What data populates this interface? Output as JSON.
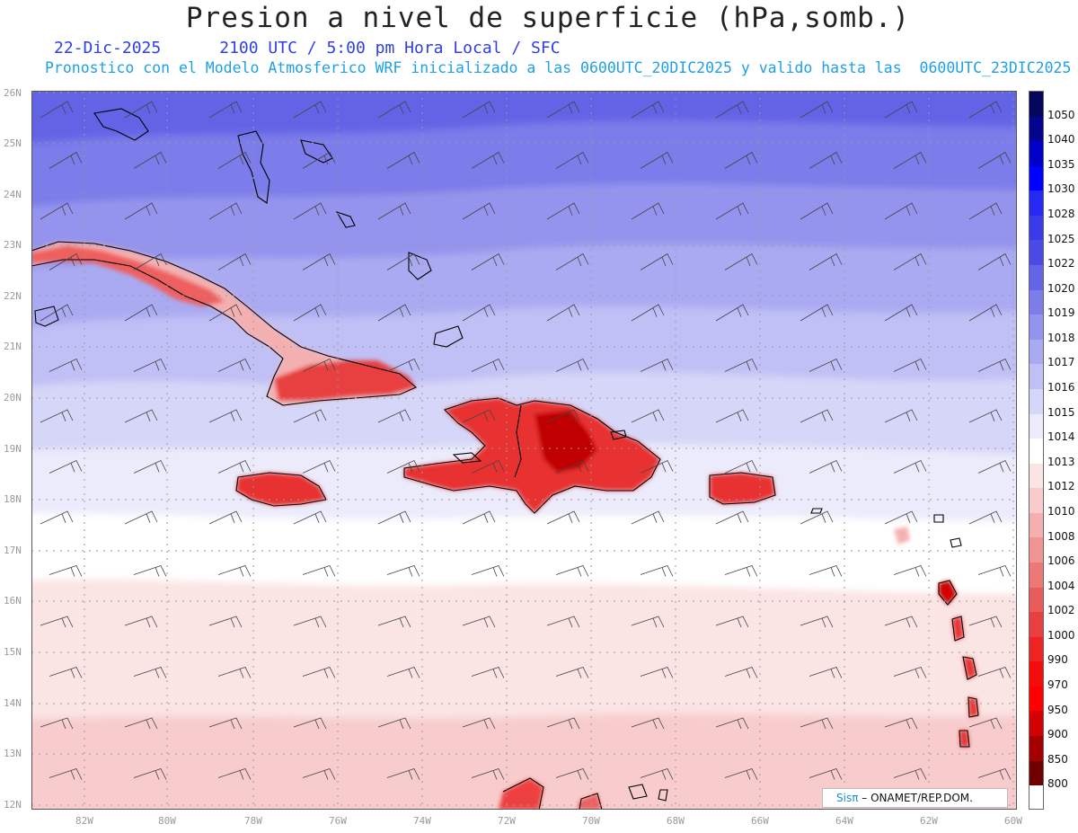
{
  "header": {
    "title": "Presion a nivel de superficie (hPa,somb.)",
    "date": "22-Dic-2025",
    "time_info": "2100 UTC / 5:00 pm Hora Local / SFC",
    "model_info": "Pronostico con el Modelo Atmosferico WRF inicializado a las 0600UTC_20DIC2025 y valido hasta las  0600UTC_23DIC2025"
  },
  "axes": {
    "lat_labels": [
      "26N",
      "25N",
      "24N",
      "23N",
      "22N",
      "21N",
      "20N",
      "19N",
      "18N",
      "17N",
      "16N",
      "15N",
      "14N",
      "13N",
      "12N"
    ],
    "lon_labels": [
      "82W",
      "80W",
      "78W",
      "76W",
      "74W",
      "72W",
      "70W",
      "68W",
      "66W",
      "64W",
      "62W",
      "60W"
    ]
  },
  "legend": {
    "levels": [
      "1050",
      "1040",
      "1035",
      "1030",
      "1028",
      "1025",
      "1022",
      "1020",
      "1019",
      "1018",
      "1017",
      "1016",
      "1015",
      "1014",
      "1013",
      "1012",
      "1010",
      "1008",
      "1006",
      "1004",
      "1002",
      "1000",
      "990",
      "970",
      "950",
      "900",
      "850",
      "800"
    ],
    "colors": [
      "#05055e",
      "#04048f",
      "#0000c8",
      "#0000ff",
      "#2828f4",
      "#3a3ae8",
      "#4a4ae4",
      "#6464e6",
      "#7c7cea",
      "#9494ee",
      "#aaaaf2",
      "#c0c0f6",
      "#d6d6f8",
      "#ebebfc",
      "#ffffff",
      "#fbe4e4",
      "#f8cccc",
      "#f4b0b0",
      "#f09494",
      "#ec7878",
      "#e85c5c",
      "#e84040",
      "#ee2424",
      "#f40c0c",
      "#ff0000",
      "#d20000",
      "#a40000",
      "#6e0000"
    ]
  },
  "credit": {
    "sis": "Sisπ",
    "org": " – ONAMET/REP.DOM."
  }
}
